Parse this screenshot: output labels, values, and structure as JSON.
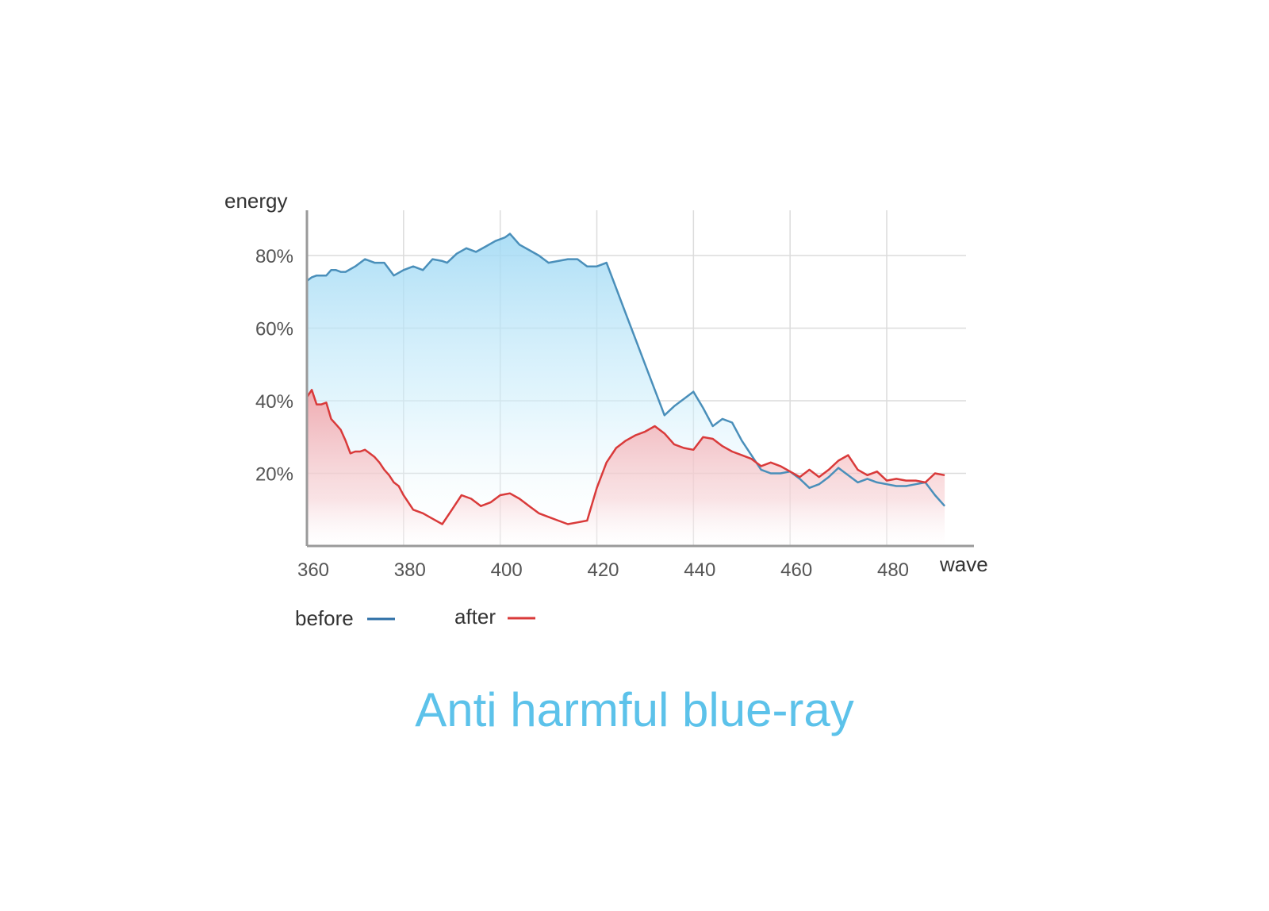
{
  "caption": "Anti harmful blue-ray",
  "colors": {
    "before": "#2c6ea6",
    "before_line": "#4a8fba",
    "before_fill": "#9ed8f4",
    "after": "#d93a3a",
    "after_fill": "#f3a3a8",
    "grid": "#dcdcdc",
    "axis": "#9a9a9a",
    "caption": "#5cc2ea"
  },
  "chart_data": {
    "type": "area",
    "xlabel": "wave",
    "ylabel": "energy",
    "xlim": [
      360,
      494
    ],
    "ylim": [
      0,
      90
    ],
    "x_ticks": [
      360,
      380,
      400,
      420,
      440,
      460,
      480
    ],
    "x_tick_labels": [
      "360",
      "380",
      "400",
      "420",
      "440",
      "460",
      "480"
    ],
    "y_ticks": [
      20,
      40,
      60,
      80
    ],
    "y_tick_labels": [
      "20%",
      "40%",
      "60%",
      "80%"
    ],
    "grid": true,
    "legend_position": "bottom-left",
    "series": [
      {
        "name": "before",
        "color": "#2c6ea6",
        "x": [
          360,
          361,
          362,
          363,
          364,
          365,
          366,
          367,
          368,
          370,
          372,
          374,
          376,
          378,
          380,
          382,
          384,
          386,
          388,
          389,
          391,
          393,
          395,
          397,
          399,
          401,
          402,
          404,
          406,
          408,
          410,
          412,
          414,
          416,
          418,
          420,
          422,
          424,
          426,
          428,
          430,
          432,
          434,
          436,
          438,
          440,
          442,
          444,
          446,
          448,
          450,
          452,
          454,
          456,
          458,
          460,
          462,
          464,
          466,
          468,
          470,
          472,
          474,
          476,
          478,
          480,
          482,
          484,
          486,
          488,
          490,
          492
        ],
        "y": [
          73,
          74,
          74.5,
          74.5,
          74.5,
          76,
          76,
          75.5,
          75.5,
          77,
          79,
          78,
          78,
          74.5,
          76,
          77,
          76,
          79,
          78.5,
          78,
          80.5,
          82,
          81,
          82.5,
          84,
          85,
          86,
          83,
          81.5,
          80,
          78,
          78.5,
          79,
          79,
          77,
          77,
          78,
          71,
          64,
          57,
          50,
          43,
          36,
          38.5,
          40.5,
          42.5,
          38,
          33,
          35,
          34,
          29,
          25,
          21,
          20,
          20,
          20.5,
          18.5,
          16,
          17,
          19,
          21.5,
          19.5,
          17.5,
          18.5,
          17.5,
          17,
          16.5,
          16.5,
          17,
          17.5,
          14,
          11
        ]
      },
      {
        "name": "after",
        "color": "#d93a3a",
        "x": [
          360,
          361,
          362,
          363,
          364,
          365,
          366,
          367,
          368,
          369,
          370,
          371,
          372,
          373,
          374,
          375,
          376,
          377,
          378,
          379,
          380,
          382,
          384,
          386,
          388,
          390,
          392,
          394,
          396,
          398,
          400,
          402,
          404,
          406,
          408,
          410,
          412,
          414,
          416,
          418,
          420,
          422,
          424,
          426,
          428,
          430,
          432,
          434,
          436,
          438,
          440,
          442,
          444,
          446,
          448,
          450,
          452,
          454,
          456,
          458,
          460,
          462,
          464,
          466,
          468,
          470,
          472,
          474,
          476,
          478,
          480,
          482,
          484,
          486,
          488,
          490,
          492
        ],
        "y": [
          41,
          43,
          39,
          39,
          39.5,
          35,
          33.5,
          32,
          29,
          25.5,
          26,
          26,
          26.5,
          25.5,
          24.5,
          23,
          21,
          19.5,
          17.5,
          16.5,
          14,
          10,
          9,
          7.5,
          6,
          10,
          14,
          13,
          11,
          12,
          14,
          14.5,
          13,
          11,
          9,
          8,
          7,
          6,
          6.5,
          7,
          16,
          23,
          27,
          29,
          30.5,
          31.5,
          33,
          31,
          28,
          27,
          26.5,
          30,
          29.5,
          27.5,
          26,
          25,
          24,
          22,
          23,
          22,
          20.5,
          19,
          21,
          19,
          21,
          23.5,
          25,
          21,
          19.5,
          20.5,
          18,
          18.5,
          18,
          18,
          17.5,
          20,
          19.5
        ]
      }
    ]
  }
}
